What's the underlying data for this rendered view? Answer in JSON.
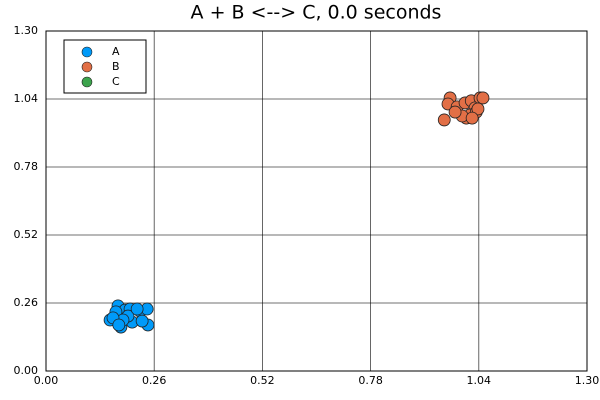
{
  "chart_data": {
    "type": "scatter",
    "title": "A + B <--> C, 0.0 seconds",
    "xlim": [
      0,
      1.3
    ],
    "ylim": [
      0,
      1.3
    ],
    "xticks": [
      {
        "value": 0,
        "label": "0.00"
      },
      0.26,
      0.52,
      0.78,
      1.04,
      {
        "value": 1.3,
        "label": "1.30"
      }
    ],
    "yticks": [
      {
        "value": 0,
        "label": "0.00"
      },
      0.26,
      0.52,
      0.78,
      1.04,
      {
        "value": 1.3,
        "label": "1.30"
      }
    ],
    "grid": true,
    "legend": "upper-left",
    "series": [
      {
        "name": "A",
        "color": "#009af9",
        "x": [
          0.154,
          0.173,
          0.19,
          0.202,
          0.226,
          0.243,
          0.245,
          0.18,
          0.168,
          0.207,
          0.231,
          0.197,
          0.219,
          0.185,
          0.161,
          0.175
        ],
        "values": [
          0.195,
          0.249,
          0.233,
          0.237,
          0.229,
          0.237,
          0.176,
          0.168,
          0.226,
          0.187,
          0.191,
          0.21,
          0.237,
          0.195,
          0.203,
          0.176
        ]
      },
      {
        "name": "B",
        "color": "#e26f46",
        "x": [
          0.957,
          0.971,
          0.966,
          0.988,
          1.007,
          1.022,
          1.031,
          1.043,
          1.05,
          1.01,
          1.019,
          1.034,
          1.0,
          1.038,
          0.983,
          1.024
        ],
        "values": [
          0.96,
          1.044,
          1.021,
          1.01,
          1.025,
          1.033,
          1.006,
          1.044,
          1.044,
          0.967,
          0.979,
          0.99,
          0.975,
          1.002,
          0.99,
          0.967
        ]
      },
      {
        "name": "C",
        "color": "#3da44d",
        "x": [],
        "values": []
      }
    ]
  }
}
